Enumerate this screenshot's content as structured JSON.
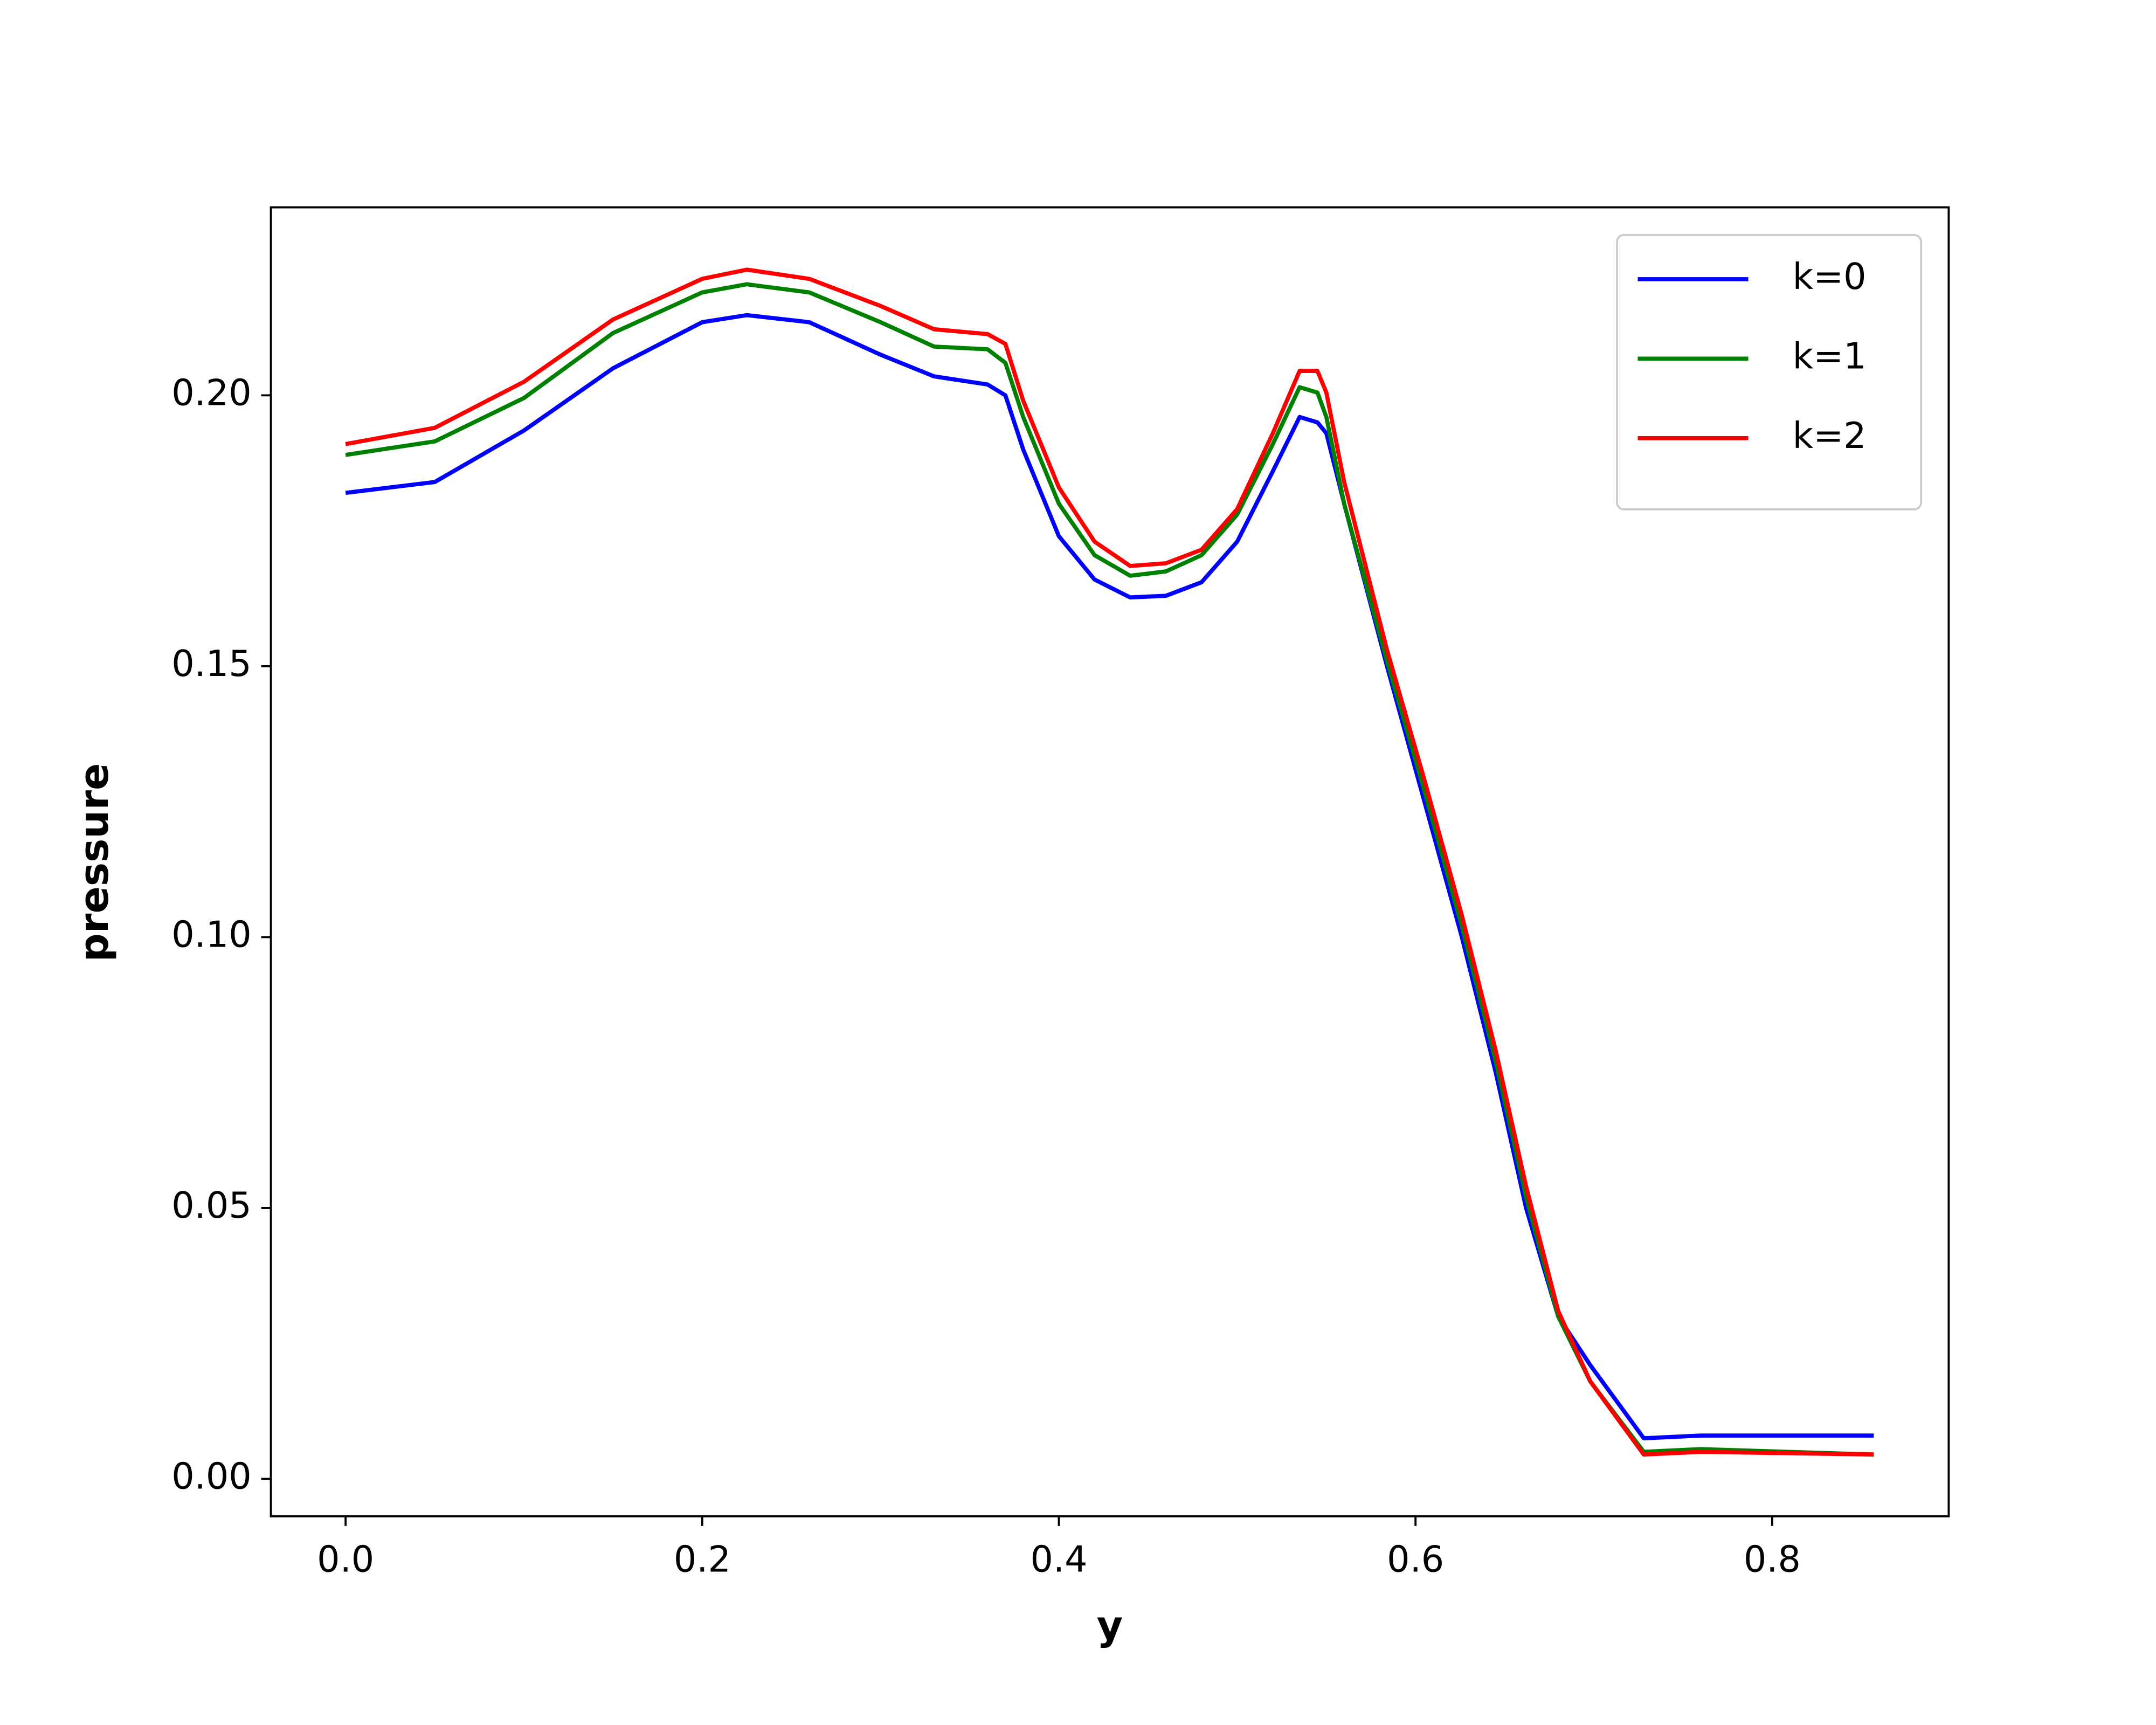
{
  "chart_data": {
    "type": "line",
    "xlabel": "y",
    "ylabel": "pressure",
    "x": [
      0,
      0.05,
      0.1,
      0.15,
      0.2,
      0.225,
      0.26,
      0.3,
      0.33,
      0.36,
      0.37,
      0.38,
      0.4,
      0.42,
      0.44,
      0.46,
      0.48,
      0.5,
      0.52,
      0.535,
      0.545,
      0.55,
      0.56,
      0.584,
      0.605,
      0.626,
      0.645,
      0.662,
      0.68,
      0.698,
      0.728,
      0.76,
      0.857
    ],
    "series": [
      {
        "name": "k=0",
        "color": "#0000ff",
        "values": [
          0.182,
          0.184,
          0.1935,
          0.205,
          0.2135,
          0.2148,
          0.2135,
          0.2075,
          0.2035,
          0.202,
          0.2,
          0.19,
          0.174,
          0.166,
          0.1627,
          0.163,
          0.1655,
          0.173,
          0.186,
          0.196,
          0.195,
          0.193,
          0.18,
          0.15,
          0.125,
          0.1,
          0.075,
          0.05,
          0.03,
          0.021,
          0.0075,
          0.008,
          0.008
        ]
      },
      {
        "name": "k=1",
        "color": "#008000",
        "values": [
          0.189,
          0.1915,
          0.1995,
          0.2115,
          0.219,
          0.2205,
          0.219,
          0.2135,
          0.209,
          0.2085,
          0.206,
          0.196,
          0.18,
          0.1705,
          0.1667,
          0.1675,
          0.1705,
          0.178,
          0.191,
          0.2015,
          0.2005,
          0.196,
          0.18,
          0.151,
          0.127,
          0.102,
          0.077,
          0.052,
          0.03,
          0.018,
          0.005,
          0.0055,
          0.0045
        ]
      },
      {
        "name": "k=2",
        "color": "#ff0000",
        "values": [
          0.191,
          0.194,
          0.2025,
          0.214,
          0.2215,
          0.2232,
          0.2215,
          0.2165,
          0.2122,
          0.2113,
          0.2095,
          0.199,
          0.183,
          0.173,
          0.1685,
          0.169,
          0.1715,
          0.179,
          0.193,
          0.2045,
          0.2045,
          0.2005,
          0.184,
          0.153,
          0.129,
          0.104,
          0.079,
          0.054,
          0.031,
          0.018,
          0.0045,
          0.005,
          0.0045
        ]
      }
    ],
    "xlim": [
      -0.0419,
      0.899
    ],
    "ylim": [
      -0.0069,
      0.2347
    ],
    "xticks": [
      {
        "value": 0,
        "label": "0.0"
      },
      0.2,
      0.4,
      0.6,
      0.8
    ],
    "yticks": [
      {
        "value": 0,
        "label": "0.00"
      },
      {
        "value": 0.05,
        "label": "0.05"
      },
      {
        "value": 0.1,
        "label": "0.10"
      },
      {
        "value": 0.15,
        "label": "0.15"
      },
      {
        "value": 0.2,
        "label": "0.20"
      }
    ],
    "legend": "upper right",
    "grid": false
  }
}
